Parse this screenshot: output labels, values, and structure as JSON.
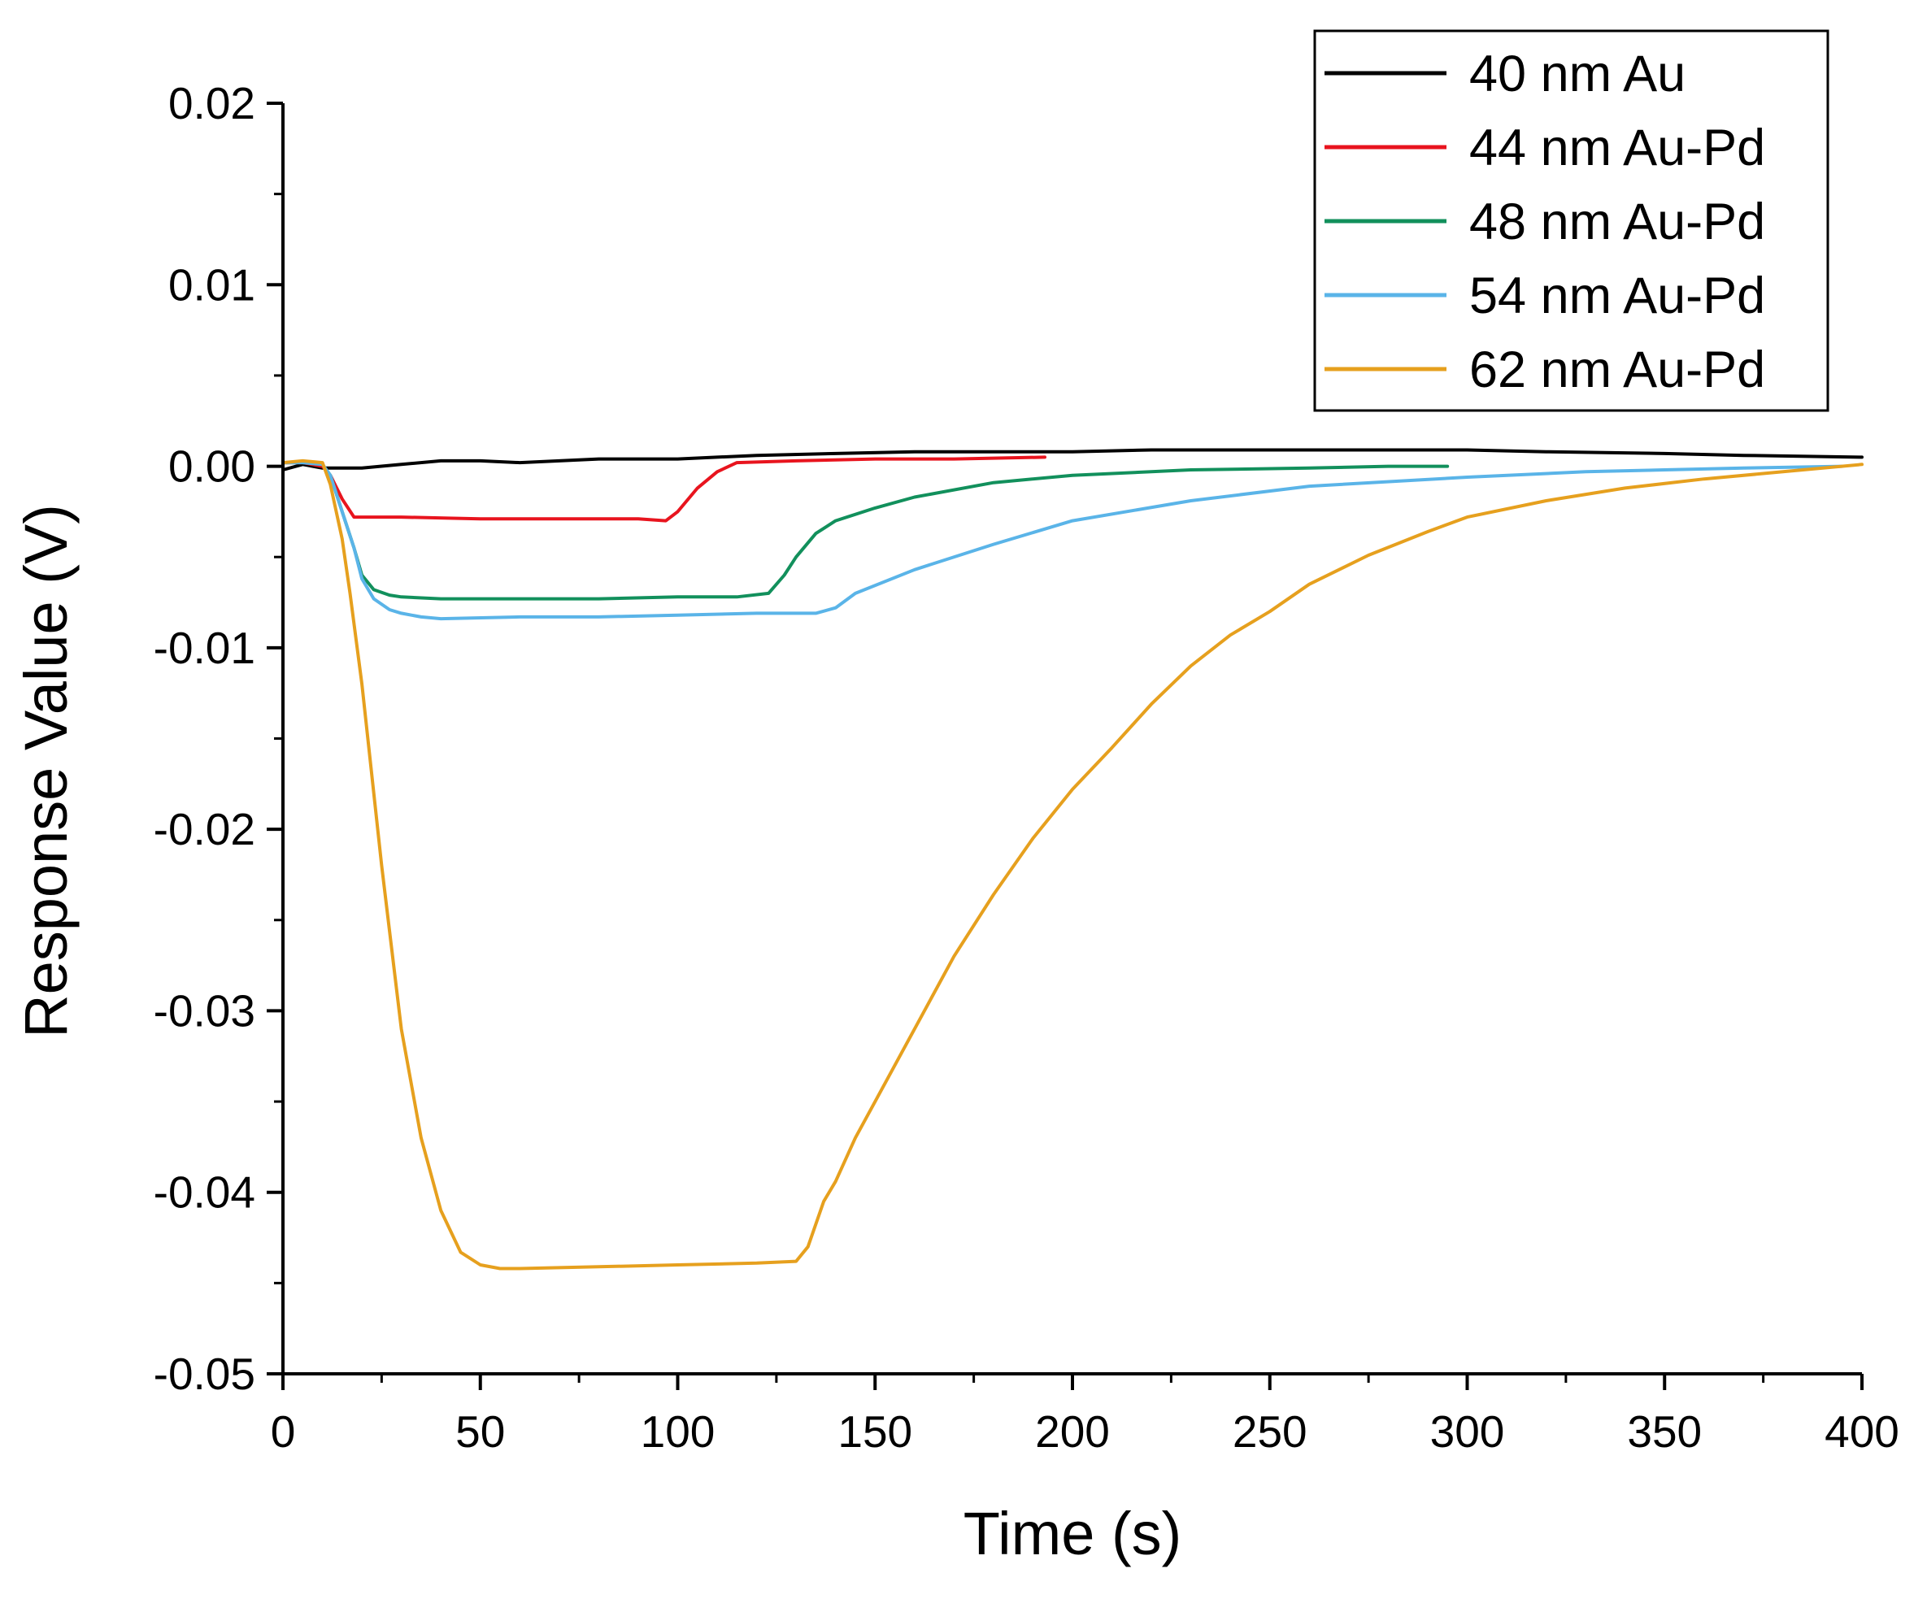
{
  "chart_data": {
    "type": "line",
    "title": "",
    "xlabel": "Time (s)",
    "ylabel": "Response Value (V)",
    "xlim": [
      0,
      400
    ],
    "ylim": [
      -0.05,
      0.02
    ],
    "x_ticks": [
      0,
      50,
      100,
      150,
      200,
      250,
      300,
      350,
      400
    ],
    "x_tick_labels": [
      "0",
      "50",
      "100",
      "150",
      "200",
      "250",
      "300",
      "350",
      "400"
    ],
    "y_ticks": [
      0.02,
      0.01,
      0.0,
      -0.01,
      -0.02,
      -0.03,
      -0.04,
      -0.05
    ],
    "y_tick_labels": [
      "0.02",
      "0.01",
      "0.00",
      "-0.01",
      "-0.02",
      "-0.03",
      "-0.04",
      "-0.05"
    ],
    "grid": false,
    "legend_position": "top-right",
    "series": [
      {
        "name": "40 nm Au",
        "color": "#000000",
        "x": [
          0,
          5,
          10,
          15,
          20,
          30,
          40,
          50,
          60,
          80,
          100,
          120,
          140,
          160,
          180,
          200,
          220,
          250,
          280,
          300,
          320,
          350,
          370,
          400
        ],
        "y": [
          -0.0002,
          0.0001,
          -0.0001,
          -0.0001,
          -0.0001,
          0.0001,
          0.0003,
          0.0003,
          0.0002,
          0.0004,
          0.0004,
          0.0006,
          0.0007,
          0.0008,
          0.0008,
          0.0008,
          0.0009,
          0.0009,
          0.0009,
          0.0009,
          0.0008,
          0.0007,
          0.0006,
          0.0005
        ]
      },
      {
        "name": "44 nm Au-Pd",
        "color": "#e8141e",
        "x": [
          0,
          5,
          10,
          12,
          15,
          18,
          30,
          50,
          70,
          90,
          97,
          100,
          105,
          110,
          115,
          130,
          150,
          170,
          193
        ],
        "y": [
          0.0002,
          0.0002,
          0.0,
          -0.0005,
          -0.0018,
          -0.0028,
          -0.0028,
          -0.0029,
          -0.0029,
          -0.0029,
          -0.003,
          -0.0025,
          -0.0012,
          -0.0003,
          0.0002,
          0.0003,
          0.0004,
          0.0004,
          0.0005
        ]
      },
      {
        "name": "48 nm Au-Pd",
        "color": "#12905c",
        "x": [
          0,
          5,
          10,
          12,
          15,
          18,
          20,
          23,
          27,
          30,
          40,
          60,
          80,
          100,
          115,
          123,
          127,
          130,
          135,
          140,
          150,
          160,
          180,
          200,
          230,
          260,
          280,
          295
        ],
        "y": [
          0.0002,
          0.0002,
          0.0001,
          -0.0005,
          -0.0025,
          -0.0045,
          -0.006,
          -0.0068,
          -0.0071,
          -0.0072,
          -0.0073,
          -0.0073,
          -0.0073,
          -0.0072,
          -0.0072,
          -0.007,
          -0.006,
          -0.005,
          -0.0037,
          -0.003,
          -0.0023,
          -0.0017,
          -0.0009,
          -0.0005,
          -0.0002,
          -0.0001,
          0.0,
          0.0
        ]
      },
      {
        "name": "54 nm Au-Pd",
        "color": "#5ab4e8",
        "x": [
          0,
          5,
          10,
          12,
          15,
          18,
          20,
          23,
          27,
          30,
          35,
          40,
          60,
          80,
          100,
          120,
          135,
          140,
          145,
          160,
          180,
          200,
          230,
          260,
          300,
          330,
          350,
          370,
          395
        ],
        "y": [
          0.0002,
          0.0002,
          0.0001,
          -0.0005,
          -0.0025,
          -0.0045,
          -0.0062,
          -0.0073,
          -0.0079,
          -0.0081,
          -0.0083,
          -0.0084,
          -0.0083,
          -0.0083,
          -0.0082,
          -0.0081,
          -0.0081,
          -0.0078,
          -0.007,
          -0.0057,
          -0.0043,
          -0.003,
          -0.0019,
          -0.0011,
          -0.0006,
          -0.0003,
          -0.0002,
          -0.0001,
          0.0
        ]
      },
      {
        "name": "62 nm Au-Pd",
        "color": "#e6a01e",
        "x": [
          0,
          5,
          10,
          12,
          15,
          17,
          20,
          25,
          30,
          35,
          40,
          45,
          50,
          55,
          60,
          80,
          100,
          120,
          130,
          133,
          137,
          140,
          145,
          150,
          160,
          170,
          180,
          190,
          200,
          210,
          220,
          230,
          240,
          250,
          260,
          275,
          290,
          300,
          320,
          340,
          360,
          380,
          400
        ],
        "y": [
          0.0002,
          0.0003,
          0.0002,
          -0.001,
          -0.004,
          -0.007,
          -0.012,
          -0.022,
          -0.031,
          -0.037,
          -0.041,
          -0.0433,
          -0.044,
          -0.0442,
          -0.0442,
          -0.0441,
          -0.044,
          -0.0439,
          -0.0438,
          -0.043,
          -0.0405,
          -0.0394,
          -0.037,
          -0.035,
          -0.031,
          -0.027,
          -0.0236,
          -0.0205,
          -0.0178,
          -0.0155,
          -0.0131,
          -0.011,
          -0.0093,
          -0.008,
          -0.0065,
          -0.0049,
          -0.0036,
          -0.0028,
          -0.0019,
          -0.0012,
          -0.0007,
          -0.0003,
          0.0001
        ]
      }
    ]
  }
}
